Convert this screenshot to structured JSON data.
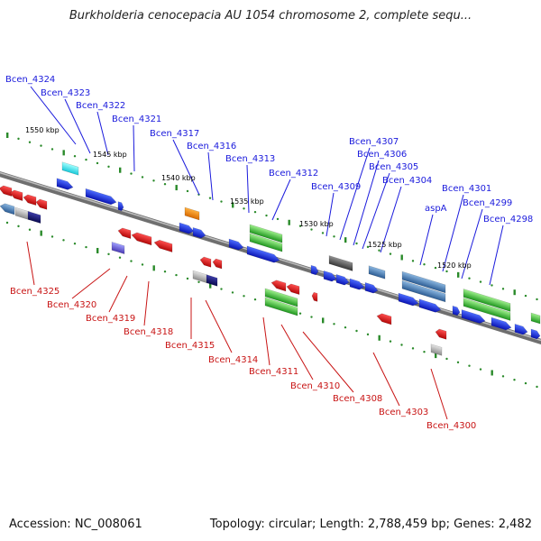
{
  "title": "Burkholderia cenocepacia AU 1054 chromosome 2, complete sequ...",
  "footer": {
    "accession": "Accession: NC_008061",
    "topology": "Topology: circular; Length: 2,788,459 bp; Genes: 2,482"
  },
  "kbp_labels": [
    "1550 kbp",
    "1545 kbp",
    "1540 kbp",
    "1535 kbp",
    "1530 kbp",
    "1525 kbp",
    "1520 kbp"
  ],
  "forward_gene_labels": [
    "Bcen_4324",
    "Bcen_4323",
    "Bcen_4322",
    "Bcen_4321",
    "Bcen_4317",
    "Bcen_4316",
    "Bcen_4313",
    "Bcen_4312",
    "Bcen_4309",
    "Bcen_4307",
    "Bcen_4306",
    "Bcen_4305",
    "Bcen_4304",
    "aspA",
    "Bcen_4301",
    "Bcen_4299",
    "Bcen_4298"
  ],
  "reverse_gene_labels": [
    "Bcen_4325",
    "Bcen_4320",
    "Bcen_4319",
    "Bcen_4318",
    "Bcen_4315",
    "Bcen_4314",
    "Bcen_4311",
    "Bcen_4310",
    "Bcen_4308",
    "Bcen_4303",
    "Bcen_4300"
  ],
  "colors": {
    "forward_label": "#1a1adc",
    "reverse_label": "#c81414",
    "forward_gene": "#1a2ee0",
    "reverse_gene": "#e01818",
    "backbone": "#8a8a8a",
    "tick": "#2a8a2a"
  },
  "icons": [
    "gene-arrow-icon"
  ]
}
